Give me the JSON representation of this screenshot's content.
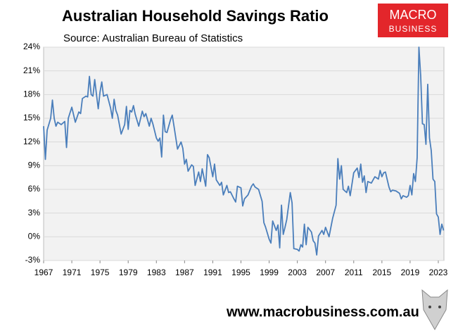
{
  "chart_data": {
    "type": "line",
    "title": "Australian Household Savings Ratio",
    "subtitle": "Source: Australian Bureau of Statistics",
    "logo_text": "MACRO",
    "logo_subtext": "BUSINESS",
    "footer": "www.macrobusiness.com.au",
    "color": "#4a7ebb",
    "grid": true,
    "xlim": [
      1967,
      2023.8
    ],
    "xticks": [
      1967,
      1971,
      1975,
      1979,
      1983,
      1987,
      1991,
      1995,
      1999,
      2003,
      2007,
      2011,
      2015,
      2019,
      2023
    ],
    "ylim": [
      -3,
      24
    ],
    "yticks": [
      {
        "value": -3,
        "label": "-3%"
      },
      {
        "value": 0,
        "label": "0%"
      },
      {
        "value": 3,
        "label": "3%"
      },
      {
        "value": 6,
        "label": "6%"
      },
      {
        "value": 9,
        "label": "9%"
      },
      {
        "value": 12,
        "label": "12%"
      },
      {
        "value": 15,
        "label": "15%"
      },
      {
        "value": 18,
        "label": "18%"
      },
      {
        "value": 21,
        "label": "21%"
      },
      {
        "value": 24,
        "label": "24%"
      }
    ],
    "x": [
      1967,
      1967.25,
      1967.5,
      1968,
      1968.25,
      1968.5,
      1968.75,
      1969,
      1969.5,
      1970,
      1970.25,
      1970.5,
      1971,
      1971.5,
      1972,
      1972.25,
      1972.5,
      1973,
      1973.25,
      1973.5,
      1973.75,
      1974,
      1974.25,
      1974.5,
      1974.75,
      1975,
      1975.25,
      1975.5,
      1976,
      1976.5,
      1976.75,
      1977,
      1977.25,
      1977.5,
      1978,
      1978.5,
      1978.75,
      1979,
      1979.25,
      1979.5,
      1979.75,
      1980,
      1980.5,
      1981,
      1981.25,
      1981.5,
      1982,
      1982.25,
      1982.5,
      1983,
      1983.25,
      1983.5,
      1983.75,
      1984,
      1984.25,
      1984.5,
      1985,
      1985.25,
      1985.5,
      1986,
      1986.5,
      1986.75,
      1987,
      1987.25,
      1987.5,
      1988,
      1988.25,
      1988.5,
      1989,
      1989.25,
      1989.5,
      1990,
      1990.25,
      1990.5,
      1991,
      1991.25,
      1991.5,
      1992,
      1992.25,
      1992.5,
      1993,
      1993.25,
      1993.5,
      1994,
      1994.25,
      1994.5,
      1995,
      1995.25,
      1995.5,
      1996,
      1996.5,
      1996.75,
      1997,
      1997.5,
      1998,
      1998.25,
      1998.5,
      1999,
      1999.25,
      1999.5,
      2000,
      2000.25,
      2000.5,
      2000.75,
      2001,
      2001.25,
      2001.5,
      2002,
      2002.25,
      2002.5,
      2003,
      2003.25,
      2003.5,
      2003.75,
      2004,
      2004.25,
      2004.5,
      2005,
      2005.25,
      2005.5,
      2005.75,
      2006,
      2006.5,
      2006.75,
      2007,
      2007.5,
      2008,
      2008.5,
      2008.75,
      2009,
      2009.25,
      2009.5,
      2010,
      2010.25,
      2010.5,
      2011,
      2011.5,
      2011.75,
      2012,
      2012.25,
      2012.5,
      2012.75,
      2013,
      2013.5,
      2014,
      2014.5,
      2014.75,
      2015,
      2015.25,
      2015.5,
      2016,
      2016.25,
      2016.5,
      2017,
      2017.5,
      2017.75,
      2018,
      2018.5,
      2018.75,
      2019,
      2019.25,
      2019.5,
      2019.75,
      2020,
      2020.25,
      2020.5,
      2020.75,
      2021,
      2021.25,
      2021.5,
      2021.75,
      2022,
      2022.25,
      2022.5,
      2022.75,
      2023,
      2023.25,
      2023.5,
      2023.75
    ],
    "values": [
      14,
      9.8,
      13.5,
      15,
      17.3,
      15,
      14,
      14.5,
      14.2,
      14.6,
      11.3,
      15,
      16.4,
      14.5,
      15.8,
      15.6,
      17.5,
      17.8,
      17.7,
      20.3,
      18,
      17.8,
      19.9,
      18,
      16.2,
      18.3,
      19.6,
      17.8,
      18,
      16.3,
      15,
      17.4,
      16,
      15.4,
      13,
      14.2,
      16.5,
      13.6,
      16,
      15.8,
      16.6,
      15.5,
      14,
      15.9,
      15.2,
      15.6,
      14,
      15,
      14.3,
      12.5,
      12.1,
      12.5,
      10.1,
      15.4,
      13.3,
      13.2,
      14.8,
      15.4,
      14,
      11.1,
      12,
      11.2,
      9.2,
      9.8,
      8.3,
      9.1,
      8.9,
      6.5,
      8.2,
      7,
      8.6,
      6.4,
      10.4,
      10,
      7.6,
      9.2,
      7.2,
      6.5,
      6.9,
      5.3,
      6.5,
      5.6,
      5.7,
      4.8,
      4.4,
      6.4,
      6.2,
      3.9,
      4.8,
      5.3,
      6.4,
      6.7,
      6.3,
      6,
      4.5,
      1.8,
      1.2,
      -0.3,
      -0.8,
      2,
      0.8,
      1.5,
      -1.4,
      4,
      0.3,
      1.2,
      2.2,
      5.6,
      4.3,
      -1.5,
      -1.6,
      -1.8,
      -1,
      -1.3,
      1.6,
      -1,
      1.2,
      0.6,
      -0.5,
      -0.8,
      -2.3,
      0.1,
      0.8,
      0.3,
      1.2,
      0,
      2.3,
      4,
      9.9,
      7.3,
      9,
      6,
      5.6,
      6.4,
      5.2,
      8.1,
      8.7,
      7.5,
      9.2,
      6.9,
      7.7,
      5.6,
      7,
      6.8,
      7.6,
      7.3,
      8.4,
      7.6,
      8.1,
      8.2,
      6.3,
      5.7,
      5.9,
      5.8,
      5.5,
      4.8,
      5.2,
      5,
      5.2,
      6.5,
      5.3,
      8,
      7,
      10,
      24,
      20.4,
      14.3,
      14.2,
      11.7,
      19.3,
      12.5,
      10.9,
      7.3,
      7,
      2.9,
      2.5,
      0.3,
      1.6,
      0.8
    ]
  }
}
